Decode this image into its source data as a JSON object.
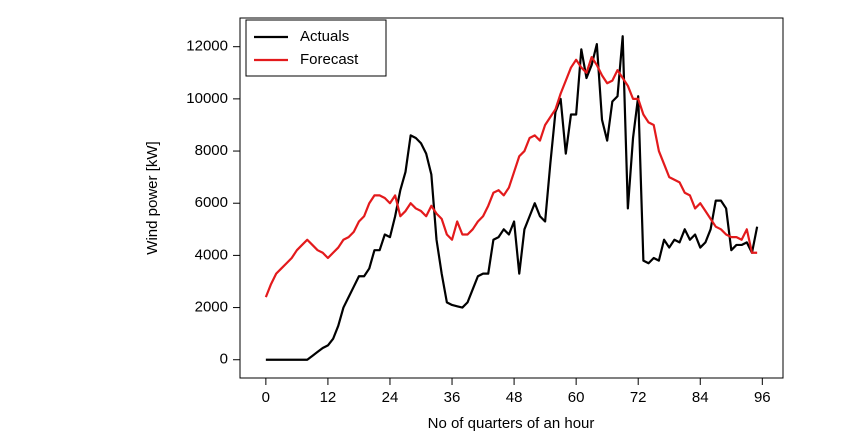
{
  "chart_data": {
    "type": "line",
    "x_label": "No of quarters of an hour",
    "y_label": "Wind power [kW]",
    "x": [
      0,
      1,
      2,
      3,
      4,
      5,
      6,
      7,
      8,
      9,
      10,
      11,
      12,
      13,
      14,
      15,
      16,
      17,
      18,
      19,
      20,
      21,
      22,
      23,
      24,
      25,
      26,
      27,
      28,
      29,
      30,
      31,
      32,
      33,
      34,
      35,
      36,
      37,
      38,
      39,
      40,
      41,
      42,
      43,
      44,
      45,
      46,
      47,
      48,
      49,
      50,
      51,
      52,
      53,
      54,
      55,
      56,
      57,
      58,
      59,
      60,
      61,
      62,
      63,
      64,
      65,
      66,
      67,
      68,
      69,
      70,
      71,
      72,
      73,
      74,
      75,
      76,
      77,
      78,
      79,
      80,
      81,
      82,
      83,
      84,
      85,
      86,
      87,
      88,
      89,
      90,
      91,
      92,
      93,
      94,
      95
    ],
    "series": [
      {
        "name": "Actuals",
        "color": "#000000",
        "values": [
          0,
          0,
          0,
          0,
          0,
          0,
          0,
          0,
          0,
          150,
          300,
          450,
          550,
          800,
          1300,
          2000,
          2400,
          2800,
          3200,
          3200,
          3500,
          4200,
          4200,
          4800,
          4700,
          5500,
          6500,
          7200,
          8600,
          8500,
          8300,
          7900,
          7100,
          4600,
          3300,
          2200,
          2100,
          2050,
          2000,
          2200,
          2700,
          3200,
          3300,
          3300,
          4600,
          4700,
          5000,
          4800,
          5300,
          3300,
          5000,
          5500,
          6000,
          5500,
          5300,
          7500,
          9500,
          10000,
          7900,
          9400,
          9400,
          11900,
          10800,
          11300,
          12100,
          9200,
          8400,
          9900,
          10100,
          12400,
          5800,
          8500,
          10100,
          3800,
          3700,
          3900,
          3800,
          4600,
          4300,
          4600,
          4500,
          5000,
          4600,
          4800,
          4300,
          4500,
          5000,
          6100,
          6100,
          5800,
          4200,
          4400,
          4400,
          4500,
          4100,
          5100
        ]
      },
      {
        "name": "Forecast",
        "color": "#e31a1c",
        "values": [
          2400,
          2900,
          3300,
          3500,
          3700,
          3900,
          4200,
          4400,
          4600,
          4400,
          4200,
          4100,
          3900,
          4100,
          4300,
          4600,
          4700,
          4900,
          5300,
          5500,
          6000,
          6300,
          6300,
          6200,
          6000,
          6300,
          5500,
          5700,
          6000,
          5800,
          5700,
          5500,
          5900,
          5600,
          5400,
          4800,
          4600,
          5300,
          4800,
          4800,
          5000,
          5300,
          5500,
          5900,
          6400,
          6500,
          6300,
          6600,
          7200,
          7800,
          8000,
          8500,
          8600,
          8400,
          9000,
          9300,
          9600,
          10200,
          10700,
          11200,
          11500,
          11200,
          11000,
          11600,
          11300,
          10900,
          10600,
          10700,
          11100,
          10800,
          10500,
          10000,
          10000,
          9400,
          9100,
          9000,
          8000,
          7500,
          7000,
          6900,
          6800,
          6400,
          6300,
          5800,
          6000,
          5700,
          5400,
          5100,
          5000,
          4800,
          4700,
          4700,
          4600,
          5000,
          4100,
          4100
        ]
      }
    ],
    "xlim": [
      -5,
      100
    ],
    "xticks": [
      0,
      12,
      24,
      36,
      48,
      60,
      72,
      84,
      96
    ],
    "ylim": [
      -700,
      13100
    ],
    "yticks": [
      0,
      2000,
      4000,
      6000,
      8000,
      10000,
      12000
    ],
    "grid": false,
    "legend": "top-left"
  }
}
